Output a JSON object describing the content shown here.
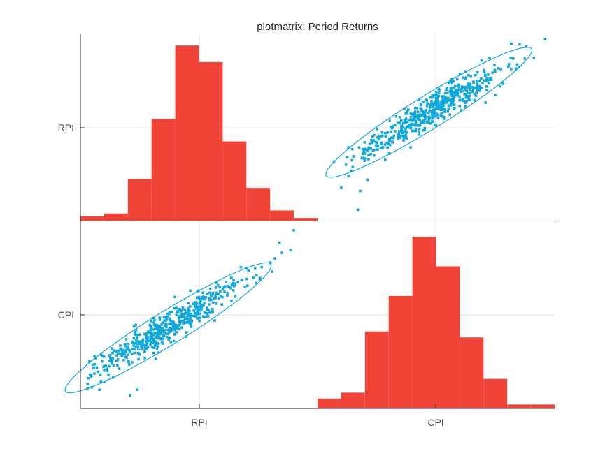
{
  "figure": {
    "title": "plotmatrix: Period Returns"
  },
  "colors": {
    "histogram": "#f04438",
    "scatter": "#11a8dc",
    "ellipse": "#11a8dc",
    "grid": "#dedede",
    "axis": "#262626",
    "text": "#4d4d4d"
  },
  "chart_data": {
    "type": "scatter",
    "subtype": "plotmatrix",
    "title": "plotmatrix: Period Returns",
    "variables": [
      "RPI",
      "CPI"
    ],
    "x_tick_labels": [
      "RPI",
      "CPI"
    ],
    "y_tick_labels": [
      "RPI",
      "CPI"
    ],
    "grid": true,
    "panels": [
      {
        "row": 0,
        "col": 0,
        "type": "bar",
        "variable": "RPI",
        "bin_edges": [
          0.0,
          0.1,
          0.2,
          0.3,
          0.4,
          0.5,
          0.6,
          0.7,
          0.8,
          0.9,
          1.0
        ],
        "counts": [
          3,
          5,
          28,
          68,
          117,
          106,
          53,
          22,
          7,
          2
        ],
        "ylim": [
          0,
          125
        ]
      },
      {
        "row": 1,
        "col": 1,
        "type": "bar",
        "variable": "CPI",
        "bin_edges": [
          0.0,
          0.1,
          0.2,
          0.3,
          0.4,
          0.5,
          0.6,
          0.7,
          0.8,
          0.9,
          1.0
        ],
        "counts": [
          5,
          8,
          39,
          57,
          87,
          72,
          36,
          15,
          2,
          2
        ],
        "ylim": [
          0,
          95
        ]
      },
      {
        "row": 0,
        "col": 1,
        "type": "scatter",
        "x": "CPI",
        "y": "RPI",
        "ellipse": {
          "center": [
            0.47,
            0.58
          ],
          "semi_axes": [
            0.55,
            0.082
          ],
          "angle_deg": 38.3
        },
        "seed": 17,
        "n_points": 520,
        "outliers": [
          [
            0.13,
            0.24
          ],
          [
            0.12,
            0.3
          ],
          [
            0.17,
            0.06
          ],
          [
            0.1,
            0.18
          ],
          [
            0.88,
            0.93
          ],
          [
            0.93,
            1.0
          ],
          [
            0.96,
            0.97
          ],
          [
            0.18,
            0.16
          ],
          [
            0.21,
            0.22
          ]
        ]
      },
      {
        "row": 1,
        "col": 0,
        "type": "scatter",
        "x": "RPI",
        "y": "CPI",
        "ellipse": {
          "center": [
            0.37,
            0.43
          ],
          "semi_axes": [
            0.55,
            0.082
          ],
          "angle_deg": 38.3
        },
        "seed": 43,
        "n_points": 520,
        "outliers": [
          [
            0.03,
            0.13
          ],
          [
            0.04,
            0.18
          ],
          [
            0.21,
            0.07
          ],
          [
            0.9,
            0.95
          ],
          [
            0.82,
            0.8
          ],
          [
            0.85,
            0.83
          ],
          [
            0.08,
            0.1
          ],
          [
            0.24,
            0.1
          ]
        ]
      }
    ]
  }
}
